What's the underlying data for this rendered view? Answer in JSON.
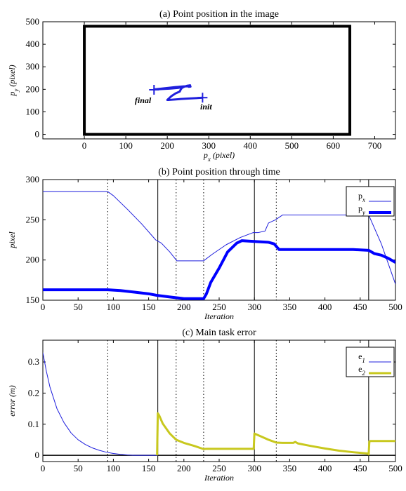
{
  "chart_data": [
    {
      "type": "line",
      "title": "(a) Point position in the image",
      "xlabel": {
        "main": "p",
        "sub": "x",
        "rest": " (pixel)"
      },
      "ylabel": {
        "main": "p",
        "sub": "y",
        "rest": " (pixel)"
      },
      "xlim": [
        -100,
        750
      ],
      "ylim": [
        -20,
        500
      ],
      "xticks": [
        0,
        100,
        200,
        300,
        400,
        500,
        600,
        700
      ],
      "yticks": [
        0,
        100,
        200,
        300,
        400,
        500
      ],
      "image_border": {
        "x": [
          0,
          640
        ],
        "y": [
          0,
          480
        ],
        "color": "#000000"
      },
      "trajectory": {
        "color": "#1f1fdd",
        "x": [
          285,
          270,
          250,
          232,
          220,
          205,
          200,
          210,
          220,
          230,
          232,
          235,
          240,
          248,
          255,
          245,
          238,
          225,
          205,
          185,
          168,
          170,
          195,
          220,
          240,
          252,
          256,
          250
        ],
        "y": [
          163,
          161,
          159,
          157,
          155,
          153,
          153,
          170,
          182,
          190,
          198,
          206,
          211,
          216,
          218,
          214,
          210,
          206,
          203,
          201,
          199,
          200,
          205,
          210,
          213,
          213,
          212,
          211
        ]
      },
      "markers": [
        {
          "label": "init",
          "x": 285,
          "y": 163
        },
        {
          "label": "final",
          "x": 168,
          "y": 198
        }
      ]
    },
    {
      "type": "line",
      "title": "(b) Point position through time",
      "xlabel": "Iteration",
      "ylabel": "pixel",
      "xlim": [
        0,
        500
      ],
      "ylim": [
        150,
        300
      ],
      "xticks": [
        0,
        50,
        100,
        150,
        200,
        250,
        300,
        350,
        400,
        450,
        500
      ],
      "yticks": [
        150,
        200,
        250,
        300
      ],
      "legend": "top-right",
      "series": [
        {
          "name": {
            "main": "p",
            "sub": "x"
          },
          "color": "#1f1fdd",
          "width": 1,
          "x": [
            0,
            92,
            100,
            120,
            140,
            160,
            168,
            180,
            190,
            200,
            210,
            228,
            240,
            260,
            280,
            298,
            305,
            315,
            320,
            330,
            340,
            400,
            462,
            470,
            480,
            490,
            500
          ],
          "y": [
            285,
            285,
            280,
            263,
            245,
            225,
            221,
            210,
            199,
            199,
            199,
            199,
            207,
            219,
            228,
            234,
            234,
            236,
            246,
            250,
            256,
            256,
            256,
            240,
            220,
            195,
            170
          ]
        },
        {
          "name": {
            "main": "p",
            "sub": "y"
          },
          "color": "#0000ff",
          "width": 4,
          "x": [
            0,
            92,
            110,
            130,
            150,
            162,
            180,
            200,
            228,
            232,
            238,
            250,
            262,
            275,
            282,
            300,
            320,
            328,
            335,
            360,
            400,
            440,
            462,
            470,
            480,
            490,
            500
          ],
          "y": [
            163,
            163,
            162,
            160,
            158,
            156,
            154,
            152,
            152,
            158,
            172,
            190,
            210,
            221,
            224,
            223,
            222,
            220,
            213,
            213,
            213,
            213,
            212,
            208,
            206,
            202,
            197
          ]
        }
      ],
      "vlines_solid": [
        163,
        300,
        462
      ],
      "vlines_dotted": [
        92,
        189,
        228,
        331
      ]
    },
    {
      "type": "line",
      "title": "(c) Main task error",
      "xlabel": "Iteration",
      "ylabel": "error (m)",
      "xlim": [
        0,
        500
      ],
      "ylim": [
        -0.02,
        0.37
      ],
      "xticks": [
        0,
        50,
        100,
        150,
        200,
        250,
        300,
        350,
        400,
        450,
        500
      ],
      "yticks": [
        0,
        0.1,
        0.2,
        0.3
      ],
      "legend": "top-right",
      "series": [
        {
          "name": {
            "main": "e",
            "sub": "1"
          },
          "color": "#1f1fdd",
          "width": 1,
          "x": [
            0,
            5,
            10,
            20,
            30,
            40,
            50,
            60,
            70,
            80,
            90,
            100,
            110,
            120,
            130,
            163
          ],
          "y": [
            0.33,
            0.27,
            0.22,
            0.15,
            0.105,
            0.072,
            0.05,
            0.035,
            0.024,
            0.016,
            0.01,
            0.006,
            0.003,
            0.001,
            0.0,
            0.0
          ]
        },
        {
          "name": {
            "main": "e",
            "sub": "2"
          },
          "color": "#c8c81e",
          "width": 3,
          "x": [
            162,
            163,
            165,
            170,
            180,
            189,
            200,
            215,
            228,
            232,
            240,
            260,
            280,
            299,
            300,
            302,
            310,
            320,
            331,
            340,
            355,
            358,
            362,
            380,
            400,
            420,
            440,
            460,
            462,
            463,
            465,
            480,
            500
          ],
          "y": [
            0.0,
            0.135,
            0.128,
            0.102,
            0.07,
            0.05,
            0.04,
            0.03,
            0.02,
            0.021,
            0.021,
            0.021,
            0.021,
            0.021,
            0.07,
            0.068,
            0.06,
            0.05,
            0.041,
            0.04,
            0.04,
            0.043,
            0.038,
            0.03,
            0.022,
            0.015,
            0.01,
            0.006,
            0.003,
            0.045,
            0.046,
            0.046,
            0.046
          ]
        }
      ],
      "hline": 0,
      "vlines_solid": [
        163,
        300,
        462
      ],
      "vlines_dotted": [
        92,
        189,
        228,
        331
      ]
    }
  ]
}
